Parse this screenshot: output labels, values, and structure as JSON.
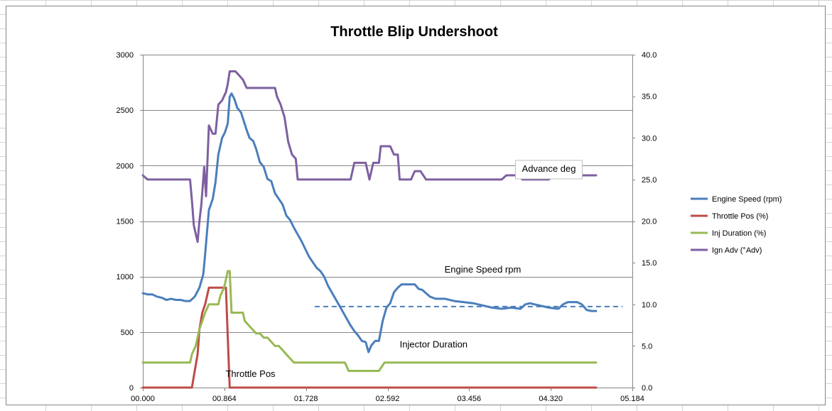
{
  "chart_data": {
    "type": "line",
    "title": "Throttle Blip Undershoot",
    "xlabel": "",
    "ylabel": "",
    "xlim": [
      0,
      5.184
    ],
    "ylim_left": [
      0,
      3000
    ],
    "ylim_right": [
      0,
      40
    ],
    "x_tick_labels": [
      "00.000",
      "00.864",
      "01.728",
      "02.592",
      "03.456",
      "04.320",
      "05.184"
    ],
    "y_left_tick_labels": [
      "0",
      "500",
      "1000",
      "1500",
      "2000",
      "2500",
      "3000"
    ],
    "y_right_tick_labels": [
      "0.0",
      "5.0",
      "10.0",
      "15.0",
      "20.0",
      "25.0",
      "30.0",
      "35.0",
      "40.0"
    ],
    "grid": true,
    "legend_placement": "right",
    "series": [
      {
        "name": "Engine Speed (rpm)",
        "axis": "left",
        "color": "#4a7ebb",
        "points": [
          [
            0.0,
            850
          ],
          [
            0.05,
            840
          ],
          [
            0.1,
            840
          ],
          [
            0.15,
            820
          ],
          [
            0.2,
            810
          ],
          [
            0.25,
            790
          ],
          [
            0.3,
            800
          ],
          [
            0.35,
            790
          ],
          [
            0.4,
            790
          ],
          [
            0.45,
            780
          ],
          [
            0.5,
            780
          ],
          [
            0.55,
            820
          ],
          [
            0.6,
            900
          ],
          [
            0.64,
            1020
          ],
          [
            0.66,
            1200
          ],
          [
            0.7,
            1600
          ],
          [
            0.74,
            1700
          ],
          [
            0.77,
            1850
          ],
          [
            0.8,
            2100
          ],
          [
            0.84,
            2250
          ],
          [
            0.87,
            2300
          ],
          [
            0.9,
            2380
          ],
          [
            0.92,
            2620
          ],
          [
            0.94,
            2650
          ],
          [
            0.97,
            2600
          ],
          [
            1.0,
            2520
          ],
          [
            1.04,
            2480
          ],
          [
            1.07,
            2400
          ],
          [
            1.1,
            2320
          ],
          [
            1.13,
            2250
          ],
          [
            1.17,
            2220
          ],
          [
            1.2,
            2150
          ],
          [
            1.24,
            2030
          ],
          [
            1.28,
            1990
          ],
          [
            1.32,
            1880
          ],
          [
            1.36,
            1860
          ],
          [
            1.4,
            1750
          ],
          [
            1.44,
            1700
          ],
          [
            1.48,
            1650
          ],
          [
            1.52,
            1550
          ],
          [
            1.56,
            1510
          ],
          [
            1.6,
            1440
          ],
          [
            1.64,
            1380
          ],
          [
            1.68,
            1320
          ],
          [
            1.72,
            1250
          ],
          [
            1.76,
            1180
          ],
          [
            1.8,
            1130
          ],
          [
            1.84,
            1080
          ],
          [
            1.88,
            1050
          ],
          [
            1.92,
            1000
          ],
          [
            1.96,
            920
          ],
          [
            2.0,
            860
          ],
          [
            2.04,
            800
          ],
          [
            2.08,
            740
          ],
          [
            2.12,
            680
          ],
          [
            2.16,
            620
          ],
          [
            2.2,
            560
          ],
          [
            2.24,
            510
          ],
          [
            2.28,
            470
          ],
          [
            2.32,
            420
          ],
          [
            2.36,
            410
          ],
          [
            2.39,
            320
          ],
          [
            2.42,
            380
          ],
          [
            2.46,
            420
          ],
          [
            2.5,
            420
          ],
          [
            2.54,
            600
          ],
          [
            2.58,
            720
          ],
          [
            2.62,
            760
          ],
          [
            2.66,
            860
          ],
          [
            2.7,
            900
          ],
          [
            2.74,
            930
          ],
          [
            2.8,
            930
          ],
          [
            2.88,
            930
          ],
          [
            2.92,
            890
          ],
          [
            2.96,
            880
          ],
          [
            3.0,
            850
          ],
          [
            3.04,
            820
          ],
          [
            3.1,
            800
          ],
          [
            3.2,
            800
          ],
          [
            3.3,
            780
          ],
          [
            3.4,
            770
          ],
          [
            3.5,
            760
          ],
          [
            3.6,
            740
          ],
          [
            3.7,
            720
          ],
          [
            3.8,
            710
          ],
          [
            3.9,
            720
          ],
          [
            4.0,
            710
          ],
          [
            4.05,
            750
          ],
          [
            4.1,
            760
          ],
          [
            4.15,
            750
          ],
          [
            4.2,
            740
          ],
          [
            4.3,
            720
          ],
          [
            4.4,
            710
          ],
          [
            4.45,
            750
          ],
          [
            4.5,
            770
          ],
          [
            4.6,
            770
          ],
          [
            4.65,
            750
          ],
          [
            4.7,
            700
          ],
          [
            4.75,
            690
          ],
          [
            4.8,
            690
          ]
        ]
      },
      {
        "name": "Throttle Pos (%)",
        "axis": "right",
        "color": "#be4b48",
        "points": [
          [
            0.0,
            0
          ],
          [
            0.5,
            0
          ],
          [
            0.52,
            0
          ],
          [
            0.55,
            2
          ],
          [
            0.58,
            4
          ],
          [
            0.6,
            7
          ],
          [
            0.63,
            9
          ],
          [
            0.66,
            10
          ],
          [
            0.68,
            11
          ],
          [
            0.7,
            12
          ],
          [
            0.85,
            12
          ],
          [
            0.88,
            12
          ],
          [
            0.9,
            6
          ],
          [
            0.92,
            0
          ],
          [
            4.8,
            0
          ]
        ]
      },
      {
        "name": "Inj Duration (%)",
        "axis": "right",
        "color": "#98b954",
        "points": [
          [
            0.0,
            3
          ],
          [
            0.5,
            3
          ],
          [
            0.52,
            4
          ],
          [
            0.56,
            5
          ],
          [
            0.6,
            7
          ],
          [
            0.63,
            8
          ],
          [
            0.66,
            9
          ],
          [
            0.7,
            10
          ],
          [
            0.8,
            10
          ],
          [
            0.82,
            11
          ],
          [
            0.86,
            12
          ],
          [
            0.88,
            13
          ],
          [
            0.9,
            14
          ],
          [
            0.92,
            14
          ],
          [
            0.94,
            9
          ],
          [
            1.0,
            9
          ],
          [
            1.06,
            9
          ],
          [
            1.08,
            8
          ],
          [
            1.12,
            7.5
          ],
          [
            1.16,
            7
          ],
          [
            1.2,
            6.5
          ],
          [
            1.24,
            6.5
          ],
          [
            1.28,
            6
          ],
          [
            1.32,
            6
          ],
          [
            1.36,
            5.5
          ],
          [
            1.4,
            5
          ],
          [
            1.44,
            5
          ],
          [
            1.48,
            4.5
          ],
          [
            1.52,
            4
          ],
          [
            1.56,
            3.5
          ],
          [
            1.6,
            3
          ],
          [
            2.14,
            3
          ],
          [
            2.18,
            2
          ],
          [
            2.5,
            2
          ],
          [
            2.56,
            3
          ],
          [
            4.8,
            3
          ]
        ]
      },
      {
        "name": "Ign Adv (°Adv)",
        "axis": "right",
        "color": "#7d60a0",
        "points": [
          [
            0.0,
            25.5
          ],
          [
            0.05,
            25
          ],
          [
            0.1,
            25
          ],
          [
            0.45,
            25
          ],
          [
            0.5,
            25
          ],
          [
            0.52,
            22.5
          ],
          [
            0.54,
            19.5
          ],
          [
            0.56,
            18.5
          ],
          [
            0.58,
            17.5
          ],
          [
            0.6,
            20
          ],
          [
            0.62,
            22
          ],
          [
            0.65,
            26.5
          ],
          [
            0.67,
            23
          ],
          [
            0.7,
            31.5
          ],
          [
            0.74,
            30.5
          ],
          [
            0.77,
            30.5
          ],
          [
            0.8,
            34
          ],
          [
            0.84,
            34.5
          ],
          [
            0.88,
            35.5
          ],
          [
            0.9,
            36.5
          ],
          [
            0.92,
            38
          ],
          [
            0.98,
            38
          ],
          [
            1.02,
            37.5
          ],
          [
            1.06,
            37
          ],
          [
            1.1,
            36
          ],
          [
            1.4,
            36
          ],
          [
            1.42,
            35
          ],
          [
            1.46,
            34
          ],
          [
            1.5,
            32.5
          ],
          [
            1.54,
            29.5
          ],
          [
            1.58,
            28
          ],
          [
            1.62,
            27.5
          ],
          [
            1.64,
            25
          ],
          [
            2.2,
            25
          ],
          [
            2.24,
            27
          ],
          [
            2.36,
            27
          ],
          [
            2.4,
            25
          ],
          [
            2.44,
            27
          ],
          [
            2.5,
            27
          ],
          [
            2.52,
            29
          ],
          [
            2.62,
            29
          ],
          [
            2.66,
            28
          ],
          [
            2.7,
            28
          ],
          [
            2.72,
            25
          ],
          [
            2.84,
            25
          ],
          [
            2.88,
            26
          ],
          [
            2.94,
            26
          ],
          [
            3.0,
            25
          ],
          [
            3.8,
            25
          ],
          [
            3.85,
            25.5
          ],
          [
            3.98,
            25.5
          ],
          [
            4.02,
            25
          ],
          [
            4.3,
            25
          ],
          [
            4.34,
            25.5
          ],
          [
            4.8,
            25.5
          ]
        ]
      }
    ],
    "reference_line": {
      "axis": "left",
      "value": 730,
      "x_range": [
        1.82,
        5.08
      ],
      "style": "dashed",
      "color": "#4a7ebb"
    },
    "annotations": [
      {
        "text": "Advance deg",
        "x": 4.3,
        "y_left": 1945,
        "boxed": true
      },
      {
        "text": "Engine Speed rpm",
        "x": 3.6,
        "y_left": 1035,
        "boxed": false
      },
      {
        "text": "Injector Duration",
        "x": 3.08,
        "y_left": 360,
        "boxed": false
      },
      {
        "text": "Throttle Pos",
        "x": 1.14,
        "y_left": 95,
        "boxed": false
      }
    ]
  }
}
